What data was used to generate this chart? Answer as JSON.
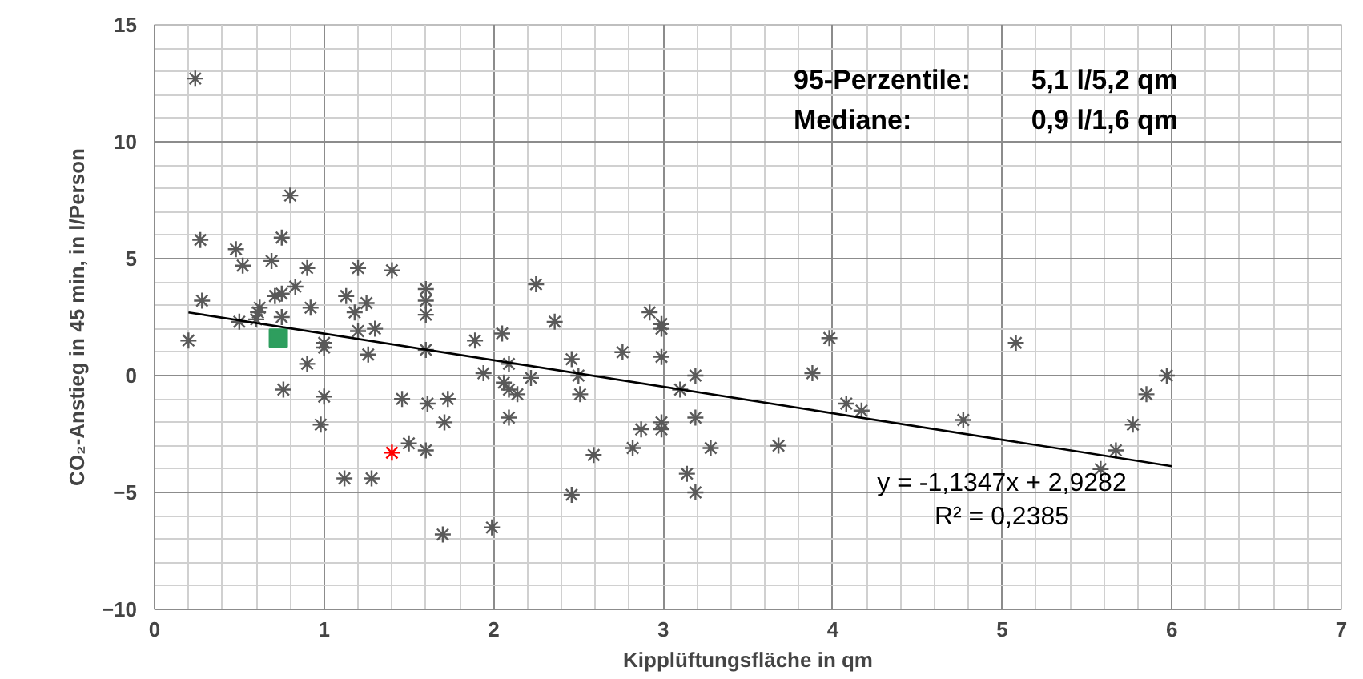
{
  "chart_data": {
    "type": "scatter",
    "xlabel": "Kipplüftungsfläche in qm",
    "ylabel": "CO₂-Anstieg in 45 min, in l/Person",
    "xlim": [
      0,
      7
    ],
    "xticks": [
      0,
      1,
      2,
      3,
      4,
      5,
      6,
      7
    ],
    "ylim": [
      -10,
      15
    ],
    "yticks": [
      -10,
      -5,
      0,
      5,
      10,
      15
    ],
    "grid": true,
    "marker": "cross",
    "series": [
      {
        "color": "#595959",
        "x": [
          0.24,
          0.27,
          0.28,
          0.2,
          0.48,
          0.52,
          0.5,
          0.61,
          0.6,
          0.75,
          0.75,
          0.71,
          0.83,
          0.8,
          0.75,
          0.69,
          0.9,
          0.62,
          0.92,
          0.9,
          0.76,
          1.0,
          1.0,
          1.0,
          0.98,
          1.13,
          1.25,
          1.18,
          1.2,
          1.2,
          1.3,
          1.26,
          1.4,
          1.46,
          1.61,
          1.73,
          1.71,
          1.5,
          1.6,
          1.12,
          1.28,
          1.7,
          1.99,
          1.6,
          1.6,
          1.6,
          1.6,
          1.89,
          1.94,
          2.05,
          2.06,
          2.25,
          2.36,
          2.09,
          2.09,
          2.14,
          2.22,
          2.09,
          2.46,
          2.5,
          2.51,
          2.59,
          2.46,
          2.76,
          2.92,
          2.99,
          2.99,
          2.99,
          3.1,
          3.19,
          3.19,
          2.99,
          2.99,
          2.87,
          2.82,
          3.28,
          3.14,
          3.19,
          3.68,
          3.88,
          3.98,
          4.08,
          4.17,
          4.77,
          5.08,
          5.58,
          5.67,
          5.77,
          5.85,
          5.97
        ],
        "values": [
          12.7,
          5.8,
          3.2,
          1.5,
          5.4,
          4.7,
          2.3,
          2.7,
          2.4,
          2.5,
          3.5,
          3.4,
          3.8,
          7.7,
          5.9,
          4.9,
          4.6,
          2.9,
          2.9,
          0.5,
          -0.6,
          1.4,
          1.2,
          -0.9,
          -2.1,
          3.4,
          3.1,
          2.7,
          4.6,
          1.9,
          2.0,
          0.9,
          4.5,
          -1.0,
          -1.2,
          -1.0,
          -2.0,
          -2.9,
          -3.2,
          -4.4,
          -4.4,
          -6.8,
          -6.5,
          3.7,
          3.2,
          2.6,
          1.1,
          1.5,
          0.1,
          1.8,
          -0.3,
          3.9,
          2.3,
          0.5,
          -0.6,
          -0.8,
          -0.1,
          -1.8,
          0.7,
          0.0,
          -0.8,
          -3.4,
          -5.1,
          1.0,
          2.7,
          2.2,
          2.0,
          0.8,
          -0.6,
          0.0,
          -1.8,
          -2.0,
          -2.3,
          -2.3,
          -3.1,
          -3.1,
          -4.2,
          -5.0,
          -3.0,
          0.1,
          1.6,
          -1.2,
          -1.5,
          -1.9,
          1.4,
          -4.0,
          -3.2,
          -2.1,
          -0.8,
          0.0
        ]
      },
      {
        "color": "#ff0000",
        "x": [
          1.4
        ],
        "values": [
          -3.3
        ]
      },
      {
        "color": "#2e9e5e",
        "marker": "square",
        "x": [
          0.73
        ],
        "values": [
          1.6
        ]
      },
      {
        "type": "line",
        "color": "#000000",
        "marker": "none",
        "x": [
          0.2,
          6.0
        ],
        "values": [
          2.7,
          -3.88
        ]
      }
    ],
    "annotations": [
      "95-Perzentile:",
      "5,1 l/5,2 qm",
      "Mediane:",
      "0,9 l/1,6 qm",
      "y = -1,1347x + 2,9282",
      "R² = 0,2385"
    ]
  }
}
